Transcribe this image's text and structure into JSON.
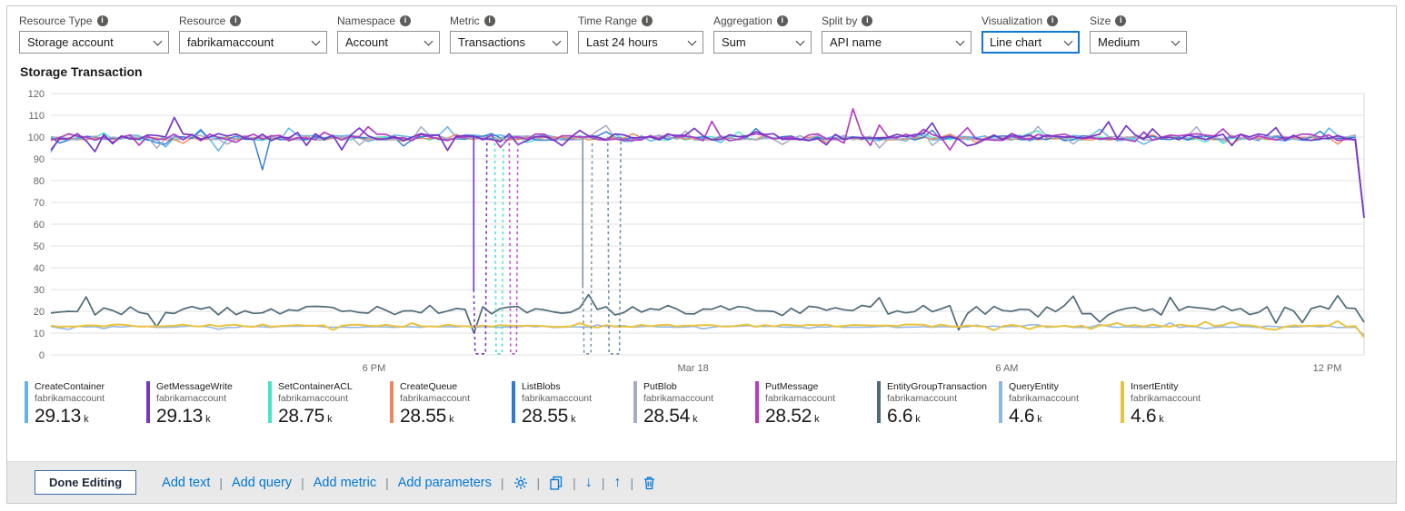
{
  "toolbar": {
    "fields": [
      {
        "id": "resource-type",
        "label": "Resource Type",
        "value": "Storage account"
      },
      {
        "id": "resource",
        "label": "Resource",
        "value": "fabrikamaccount"
      },
      {
        "id": "namespace",
        "label": "Namespace",
        "value": "Account"
      },
      {
        "id": "metric",
        "label": "Metric",
        "value": "Transactions"
      },
      {
        "id": "time-range",
        "label": "Time Range",
        "value": "Last 24 hours"
      },
      {
        "id": "aggregation",
        "label": "Aggregation",
        "value": "Sum"
      },
      {
        "id": "split-by",
        "label": "Split by",
        "value": "API name"
      },
      {
        "id": "visualization",
        "label": "Visualization",
        "value": "Line chart",
        "highlighted": true
      },
      {
        "id": "size",
        "label": "Size",
        "value": "Medium"
      }
    ]
  },
  "chart_data": {
    "type": "line",
    "title": "Storage Transaction",
    "ylim": [
      0,
      120
    ],
    "yticks": [
      0,
      10,
      20,
      30,
      40,
      50,
      60,
      70,
      80,
      90,
      100,
      110,
      120
    ],
    "xticks": [
      {
        "f": 0.246,
        "label": "6 PM"
      },
      {
        "f": 0.489,
        "label": "Mar 18"
      },
      {
        "f": 0.728,
        "label": "6 AM"
      },
      {
        "f": 0.972,
        "label": "12 PM"
      }
    ],
    "time_range": "Last 24 hours",
    "legend_position": "bottom",
    "grid": "horizontal",
    "series": [
      {
        "name": "CreateContainer",
        "account": "fabrikamaccount",
        "total": "29.13",
        "suffix": "k",
        "color": "#62b5e5",
        "baseline": 99.5,
        "noise": 1.5,
        "seed": 7,
        "end": 63,
        "sw": 1.5
      },
      {
        "name": "GetMessageWrite",
        "account": "fabrikamaccount",
        "total": "29.13",
        "suffix": "k",
        "color": "#7536c8",
        "baseline": 100.0,
        "noise": 1.7,
        "seed": 23,
        "end": 63,
        "sw": 1.7,
        "overrides": [
          [
            0.095,
            109
          ],
          [
            0.49,
            104
          ]
        ]
      },
      {
        "name": "SetContainerACL",
        "account": "fabrikamaccount",
        "total": "28.75",
        "suffix": "k",
        "color": "#49e3cb",
        "baseline": 99.4,
        "noise": 0.8,
        "seed": 5,
        "end": 63,
        "sw": 1.4
      },
      {
        "name": "CreateQueue",
        "account": "fabrikamaccount",
        "total": "28.55",
        "suffix": "k",
        "color": "#ef8662",
        "baseline": 99.3,
        "noise": 0.7,
        "seed": 9,
        "end": 63,
        "sw": 1.4
      },
      {
        "name": "ListBlobs",
        "account": "fabrikamaccount",
        "total": "28.55",
        "suffix": "k",
        "color": "#2e7bd6",
        "baseline": 99.6,
        "noise": 1.0,
        "seed": 13,
        "end": 63,
        "sw": 1.4,
        "overrides": [
          [
            0.16,
            85
          ]
        ]
      },
      {
        "name": "PutBlob",
        "account": "fabrikamaccount",
        "total": "28.54",
        "suffix": "k",
        "color": "#a8abc6",
        "baseline": 99.7,
        "noise": 1.2,
        "seed": 17,
        "end": 63,
        "sw": 1.5
      },
      {
        "name": "PutMessage",
        "account": "fabrikamaccount",
        "total": "28.52",
        "suffix": "k",
        "color": "#b53dc4",
        "baseline": 99.9,
        "noise": 1.6,
        "seed": 19,
        "end": 63,
        "sw": 1.7,
        "overrides": [
          [
            0.613,
            113
          ]
        ]
      },
      {
        "name": "EntityGroupTransaction",
        "account": "fabrikamaccount",
        "total": "6.6",
        "suffix": "k",
        "color": "#4e6a78",
        "baseline": 20.5,
        "noise": 2.2,
        "seed": 29,
        "end": 15,
        "sw": 1.7,
        "overrides": [
          [
            0.322,
            10
          ]
        ]
      },
      {
        "name": "QueryEntity",
        "account": "fabrikamaccount",
        "total": "4.6",
        "suffix": "k",
        "color": "#8fb5e3",
        "baseline": 12.9,
        "noise": 0.35,
        "seed": 31,
        "end": 9,
        "sw": 1.5
      },
      {
        "name": "InsertEntity",
        "account": "fabrikamaccount",
        "total": "4.6",
        "suffix": "k",
        "color": "#e9c340",
        "baseline": 13.4,
        "noise": 0.55,
        "seed": 37,
        "end": 8,
        "sw": 2,
        "overrides": [
          [
            0.72,
            11.3
          ],
          [
            0.935,
            11.6
          ]
        ]
      }
    ],
    "dips": [
      {
        "f": 0.322,
        "color": "#7536c8",
        "solid_to": 30,
        "w": 13
      },
      {
        "f": 0.338,
        "color": "#49e3cb",
        "solid_to": null,
        "w": 8
      },
      {
        "f": 0.349,
        "color": "#c24fd0",
        "solid_to": null,
        "w": 8
      },
      {
        "f": 0.405,
        "color": "#8094a6",
        "solid_to": 32,
        "w": 9
      },
      {
        "f": 0.424,
        "color": "#6b8fa3",
        "solid_to": null,
        "w": 13
      }
    ]
  },
  "footer": {
    "done_label": "Done Editing",
    "links": [
      {
        "id": "add-text",
        "label": "Add text"
      },
      {
        "id": "add-query",
        "label": "Add query"
      },
      {
        "id": "add-metric",
        "label": "Add metric"
      },
      {
        "id": "add-parameters",
        "label": "Add parameters"
      }
    ],
    "icons": [
      {
        "id": "settings-icon"
      },
      {
        "id": "copy-icon"
      },
      {
        "id": "move-down-icon"
      },
      {
        "id": "move-up-icon"
      },
      {
        "id": "delete-icon"
      }
    ]
  }
}
